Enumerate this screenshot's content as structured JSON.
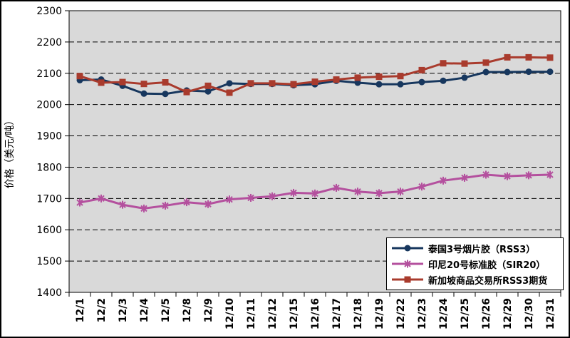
{
  "chart_data": {
    "type": "line",
    "title": "",
    "xlabel": "",
    "ylabel": "价格（美元/吨）",
    "ylim": [
      1400,
      2300
    ],
    "ytick_step": 100,
    "yticks": [
      1400,
      1500,
      1600,
      1700,
      1800,
      1900,
      2000,
      2100,
      2200,
      2300
    ],
    "grid": true,
    "grid_style": "dashed",
    "plot_bg_color": "#D9D9D9",
    "legend_position": "inside-bottom-right",
    "categories": [
      "12/1",
      "12/2",
      "12/3",
      "12/4",
      "12/5",
      "12/8",
      "12/9",
      "12/10",
      "12/11",
      "12/12",
      "12/15",
      "12/16",
      "12/17",
      "12/18",
      "12/19",
      "12/22",
      "12/23",
      "12/24",
      "12/25",
      "12/26",
      "12/29",
      "12/30",
      "12/31"
    ],
    "series": [
      {
        "name": "泰国3号烟片胶（RSS3）",
        "color": "#17375E",
        "marker": "circle",
        "values": [
          2078,
          2080,
          2060,
          2035,
          2034,
          2045,
          2042,
          2068,
          2066,
          2066,
          2062,
          2065,
          2076,
          2070,
          2065,
          2065,
          2072,
          2076,
          2086,
          2104,
          2104,
          2105,
          2105
        ]
      },
      {
        "name": "印尼20号标准胶（SIR20）",
        "color": "#B4509E",
        "marker": "asterisk",
        "values": [
          1687,
          1700,
          1680,
          1668,
          1677,
          1688,
          1682,
          1697,
          1702,
          1707,
          1718,
          1716,
          1734,
          1722,
          1717,
          1722,
          1738,
          1757,
          1766,
          1776,
          1771,
          1774,
          1776
        ]
      },
      {
        "name": "新加坡商品交易所RSS3期货",
        "color": "#A93B2D",
        "marker": "square",
        "values": [
          2091,
          2070,
          2072,
          2066,
          2071,
          2040,
          2060,
          2038,
          2068,
          2068,
          2065,
          2073,
          2080,
          2086,
          2089,
          2091,
          2110,
          2132,
          2131,
          2134,
          2151,
          2151,
          2150
        ]
      }
    ]
  }
}
